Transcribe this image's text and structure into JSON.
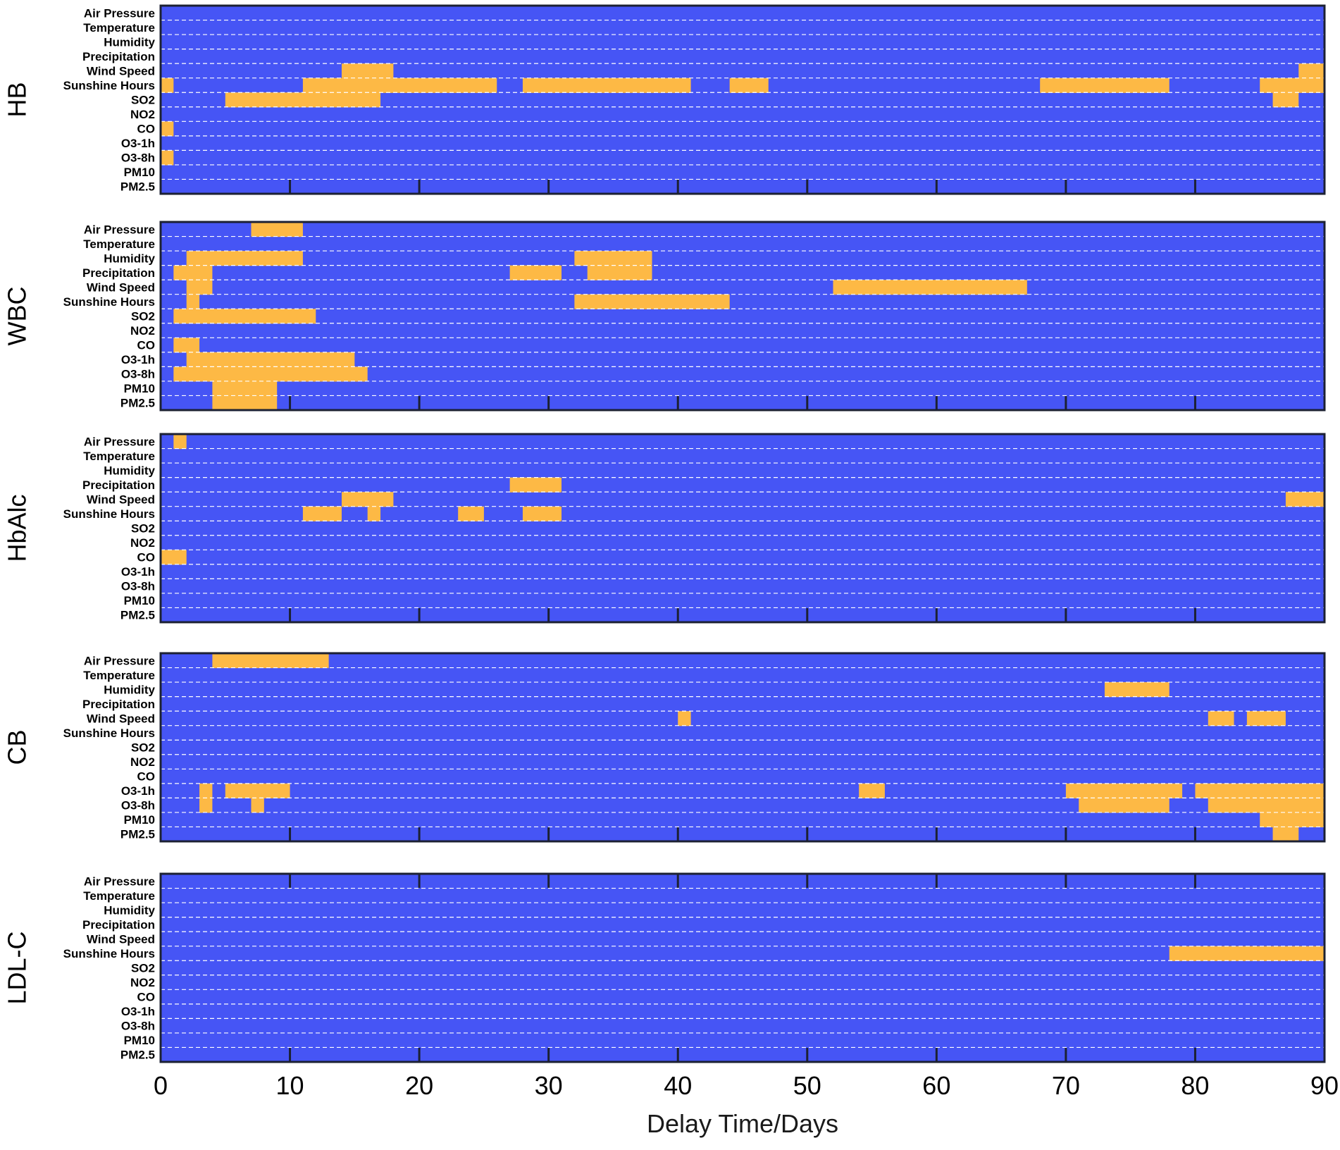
{
  "chart_data": {
    "type": "heatmap",
    "title": "",
    "xlabel": "Delay Time/Days",
    "xlim": [
      0,
      90
    ],
    "xticks": [
      0,
      10,
      20,
      30,
      40,
      50,
      60,
      70,
      80,
      90
    ],
    "grid": "dashed horizontal lines between variable rows",
    "colors": {
      "background": "#4655f5",
      "significant": "#fdb945",
      "grid": "#ffffff",
      "frame": "#1c2133"
    },
    "variables": [
      "Air Pressure",
      "Temperature",
      "Humidity",
      "Precipitation",
      "Wind Speed",
      "Sunshine Hours",
      "SO2",
      "NO2",
      "CO",
      "O3-1h",
      "O3-8h",
      "PM10",
      "PM2.5"
    ],
    "panels": [
      {
        "name": "HB",
        "cells": [
          {
            "var": "Wind Speed",
            "ranges": [
              [
                14,
                18
              ],
              [
                88,
                90
              ]
            ]
          },
          {
            "var": "Sunshine Hours",
            "ranges": [
              [
                0,
                1
              ],
              [
                11,
                26
              ],
              [
                28,
                41
              ],
              [
                44,
                47
              ],
              [
                68,
                78
              ],
              [
                85,
                90
              ]
            ]
          },
          {
            "var": "SO2",
            "ranges": [
              [
                5,
                17
              ],
              [
                86,
                88
              ]
            ]
          },
          {
            "var": "CO",
            "ranges": [
              [
                0,
                1
              ]
            ]
          },
          {
            "var": "O3-8h",
            "ranges": [
              [
                0,
                1
              ]
            ]
          }
        ]
      },
      {
        "name": "WBC",
        "cells": [
          {
            "var": "Air Pressure",
            "ranges": [
              [
                7,
                11
              ]
            ]
          },
          {
            "var": "Humidity",
            "ranges": [
              [
                2,
                11
              ],
              [
                32,
                38
              ]
            ]
          },
          {
            "var": "Precipitation",
            "ranges": [
              [
                1,
                4
              ],
              [
                27,
                31
              ],
              [
                33,
                38
              ]
            ]
          },
          {
            "var": "Wind Speed",
            "ranges": [
              [
                2,
                4
              ],
              [
                52,
                67
              ],
              [
                61,
                62
              ]
            ]
          },
          {
            "var": "Sunshine Hours",
            "ranges": [
              [
                2,
                3
              ],
              [
                32,
                44
              ]
            ]
          },
          {
            "var": "SO2",
            "ranges": [
              [
                1,
                12
              ]
            ]
          },
          {
            "var": "CO",
            "ranges": [
              [
                1,
                3
              ]
            ]
          },
          {
            "var": "O3-1h",
            "ranges": [
              [
                2,
                15
              ]
            ]
          },
          {
            "var": "O3-8h",
            "ranges": [
              [
                1,
                16
              ]
            ]
          },
          {
            "var": "PM10",
            "ranges": [
              [
                4,
                9
              ]
            ]
          },
          {
            "var": "PM2.5",
            "ranges": [
              [
                4,
                9
              ]
            ]
          }
        ]
      },
      {
        "name": "HbAlc",
        "cells": [
          {
            "var": "Air Pressure",
            "ranges": [
              [
                1,
                2
              ]
            ]
          },
          {
            "var": "Precipitation",
            "ranges": [
              [
                27,
                31
              ]
            ]
          },
          {
            "var": "Wind Speed",
            "ranges": [
              [
                14,
                18
              ],
              [
                87,
                90
              ]
            ]
          },
          {
            "var": "Sunshine Hours",
            "ranges": [
              [
                11,
                14
              ],
              [
                16,
                17
              ],
              [
                23,
                25
              ],
              [
                28,
                31
              ]
            ]
          },
          {
            "var": "CO",
            "ranges": [
              [
                0,
                2
              ]
            ]
          }
        ]
      },
      {
        "name": "CB",
        "cells": [
          {
            "var": "Air Pressure",
            "ranges": [
              [
                4,
                13
              ]
            ]
          },
          {
            "var": "Humidity",
            "ranges": [
              [
                73,
                78
              ]
            ]
          },
          {
            "var": "Wind Speed",
            "ranges": [
              [
                40,
                41
              ],
              [
                81,
                83
              ],
              [
                84,
                87
              ]
            ]
          },
          {
            "var": "O3-1h",
            "ranges": [
              [
                3,
                4
              ],
              [
                5,
                10
              ],
              [
                54,
                56
              ],
              [
                70,
                79
              ],
              [
                80,
                90
              ]
            ]
          },
          {
            "var": "O3-8h",
            "ranges": [
              [
                3,
                4
              ],
              [
                7,
                8
              ],
              [
                71,
                78
              ],
              [
                81,
                90
              ]
            ]
          },
          {
            "var": "PM10",
            "ranges": [
              [
                85,
                90
              ]
            ]
          },
          {
            "var": "PM2.5",
            "ranges": [
              [
                86,
                88
              ]
            ]
          }
        ]
      },
      {
        "name": "LDL-C",
        "cells": [
          {
            "var": "Sunshine Hours",
            "ranges": [
              [
                78,
                90
              ]
            ]
          }
        ]
      }
    ]
  }
}
